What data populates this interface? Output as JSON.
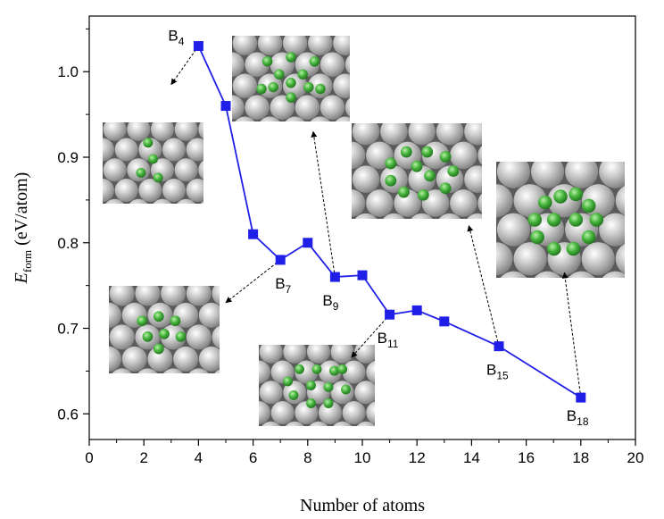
{
  "chart_data": {
    "type": "line",
    "xlabel": "Number of atoms",
    "ylabel_main": "E",
    "ylabel_sub": "form",
    "ylabel_unit": " (eV/atom)",
    "xlim": [
      0,
      20
    ],
    "ylim": [
      0.57,
      1.065
    ],
    "xticks": [
      0,
      2,
      4,
      6,
      8,
      10,
      12,
      14,
      16,
      18,
      20
    ],
    "yticks": [
      0.6,
      0.7,
      0.8,
      0.9,
      1.0
    ],
    "ytick_labels": [
      "0.6",
      "0.7",
      "0.8",
      "0.9",
      "1.0"
    ],
    "grid": false,
    "series": [
      {
        "color": "#1f1fe8",
        "x": [
          4,
          5,
          6,
          7,
          8,
          9,
          10,
          11,
          12,
          13,
          15,
          18
        ],
        "y": [
          1.03,
          0.96,
          0.81,
          0.78,
          0.8,
          0.76,
          0.762,
          0.716,
          0.721,
          0.708,
          0.679,
          0.619
        ]
      }
    ],
    "point_labels": [
      {
        "main": "B",
        "sub": "4",
        "x": 4,
        "y": 1.03
      },
      {
        "main": "B",
        "sub": "7",
        "x": 7,
        "y": 0.78
      },
      {
        "main": "B",
        "sub": "9",
        "x": 9,
        "y": 0.76
      },
      {
        "main": "B",
        "sub": "11",
        "x": 11,
        "y": 0.716
      },
      {
        "main": "B",
        "sub": "15",
        "x": 15,
        "y": 0.679
      },
      {
        "main": "B",
        "sub": "18",
        "x": 18,
        "y": 0.619
      }
    ],
    "insets": [
      {
        "name": "inset-b4-structure",
        "cluster": "B4",
        "from": [
          4,
          1.03
        ],
        "to": [
          3.0,
          0.985
        ]
      },
      {
        "name": "inset-b7-structure",
        "cluster": "B7",
        "from": [
          7,
          0.78
        ],
        "to": [
          5.0,
          0.73
        ]
      },
      {
        "name": "inset-b9-structure",
        "cluster": "B9",
        "from": [
          9,
          0.76
        ],
        "to": [
          8.2,
          0.93
        ]
      },
      {
        "name": "inset-b11-structure",
        "cluster": "B11",
        "from": [
          11,
          0.716
        ],
        "to": [
          9.6,
          0.666
        ]
      },
      {
        "name": "inset-b15-structure",
        "cluster": "B15",
        "from": [
          15,
          0.679
        ],
        "to": [
          13.9,
          0.82
        ]
      },
      {
        "name": "inset-b18-structure",
        "cluster": "B18",
        "from": [
          18,
          0.619
        ],
        "to": [
          17.4,
          0.765
        ]
      },
      {
        "name": "inset-b4-top-structure",
        "cluster": "B5",
        "from": null,
        "to": null
      }
    ],
    "colors": {
      "line": "#1f1fe8",
      "boron": "#3fae3a",
      "metal": "#b9b9b9"
    }
  }
}
